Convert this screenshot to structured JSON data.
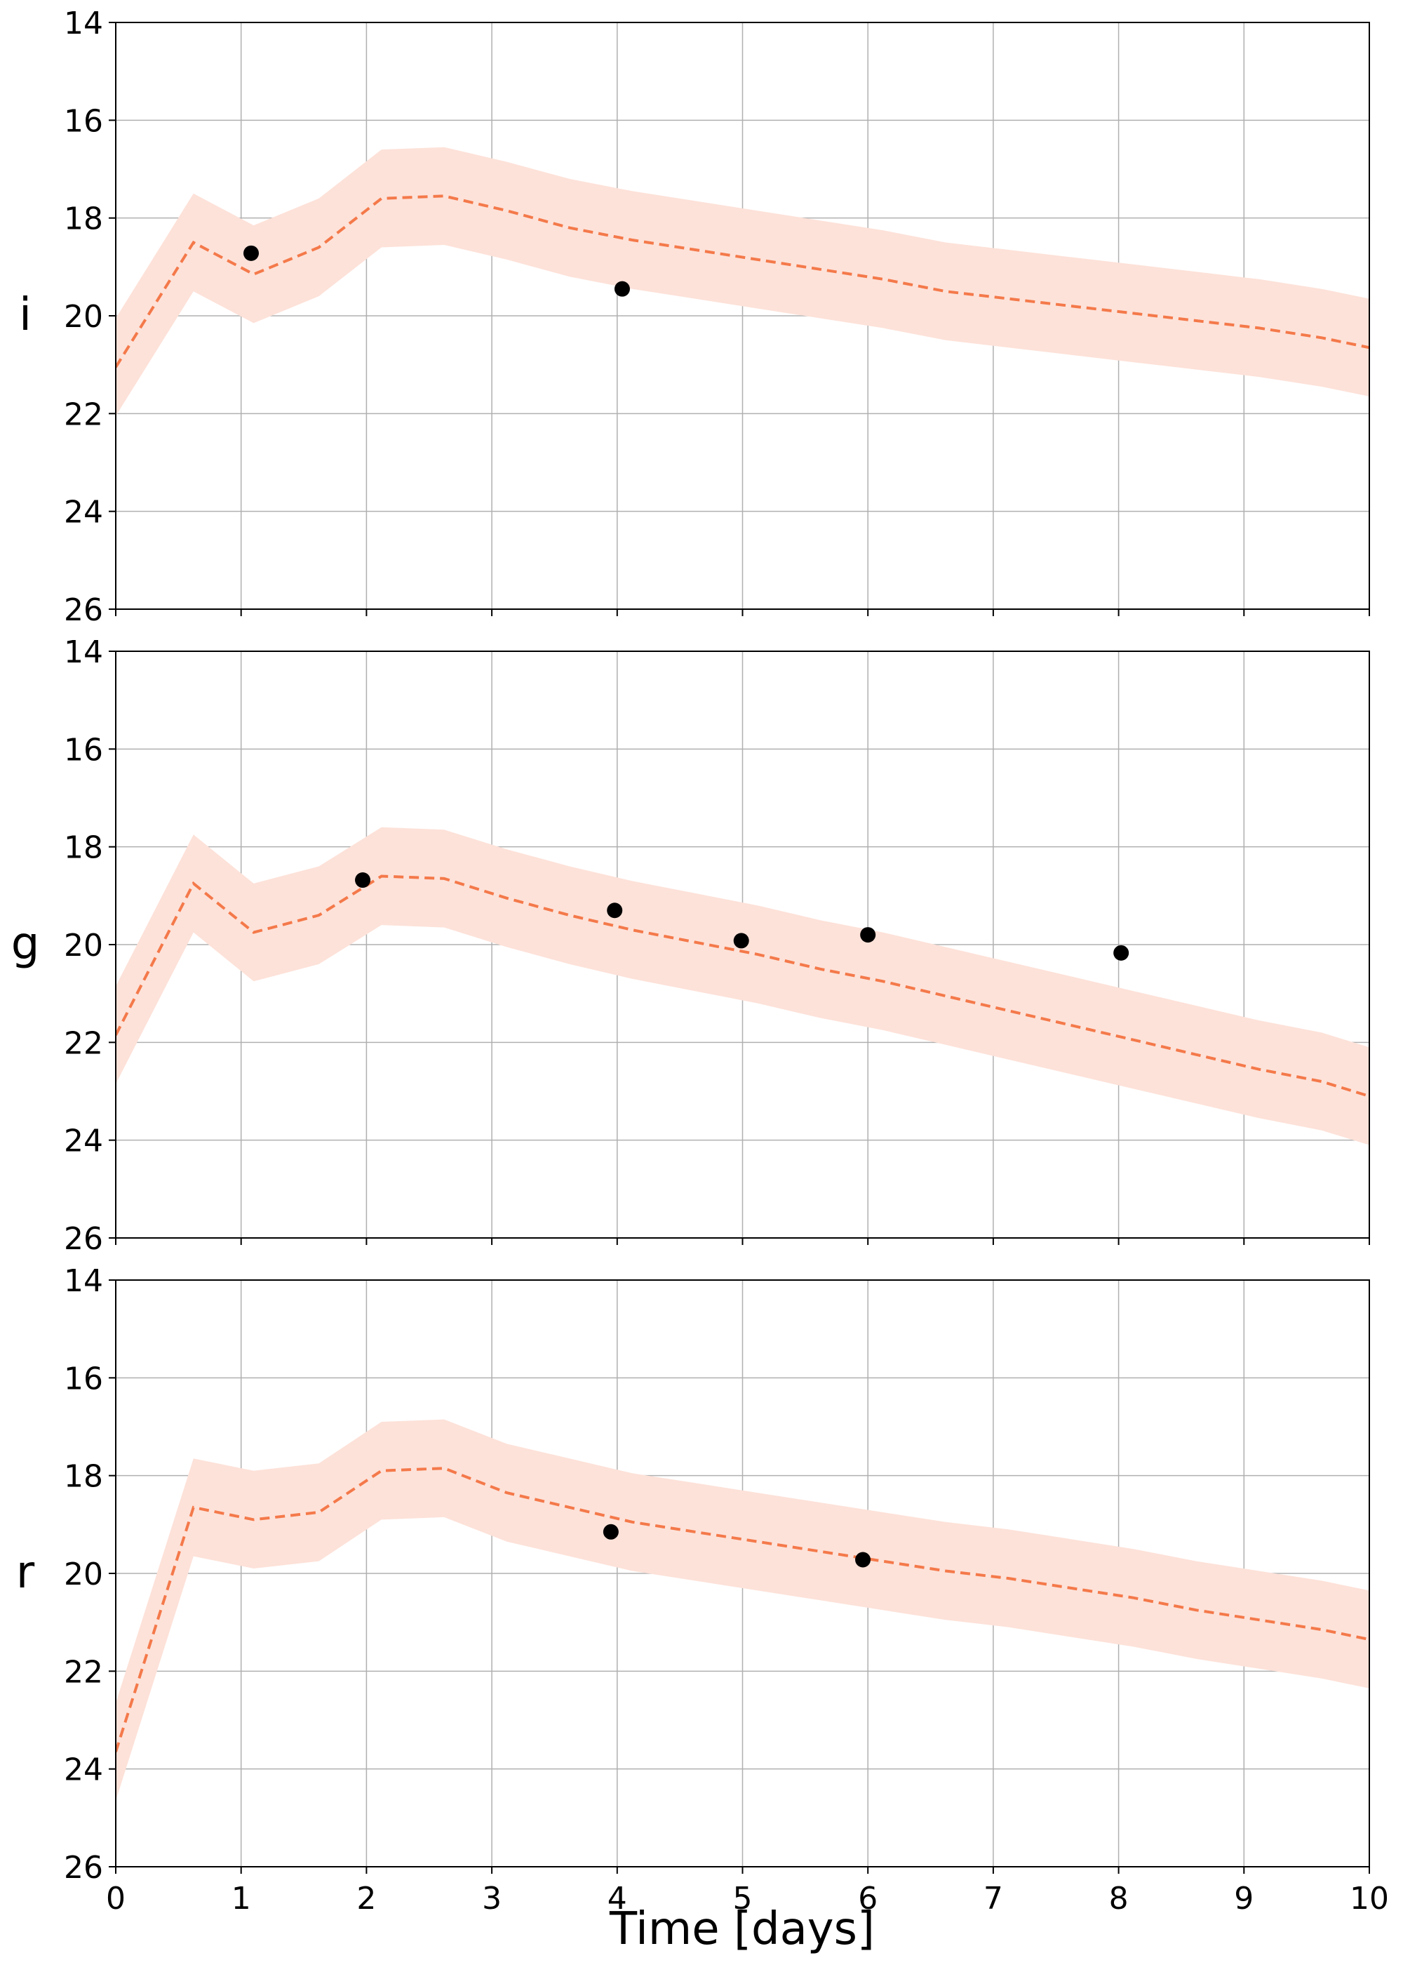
{
  "xlabel": "Time [days]",
  "colors": {
    "model": "#f4794a",
    "band": "#fde2d9",
    "points": "#000000",
    "grid": "#b0b0b0"
  },
  "chart_data": [
    {
      "type": "line",
      "ylabel": "i",
      "xlim": [
        0,
        10
      ],
      "ylim": [
        26,
        14
      ],
      "y_inverted": true,
      "grid": true,
      "xticks": [
        "0",
        "1",
        "2",
        "3",
        "4",
        "5",
        "6",
        "7",
        "8",
        "9",
        "10"
      ],
      "yticks": [
        "14",
        "16",
        "18",
        "20",
        "22",
        "24",
        "26"
      ],
      "model": {
        "x": [
          0,
          0.62,
          1.1,
          1.62,
          2.12,
          2.62,
          3.12,
          3.62,
          4.12,
          4.62,
          5.12,
          5.62,
          6.12,
          6.62,
          7.12,
          7.62,
          8.12,
          8.62,
          9.12,
          9.62,
          10
        ],
        "y": [
          21.05,
          18.5,
          19.15,
          18.6,
          17.6,
          17.55,
          17.85,
          18.2,
          18.45,
          18.65,
          18.85,
          19.05,
          19.25,
          19.5,
          19.65,
          19.8,
          19.95,
          20.1,
          20.25,
          20.45,
          20.65
        ]
      },
      "band_halfwidth": 1.0,
      "observations": {
        "x": [
          1.08,
          4.04
        ],
        "y": [
          18.72,
          19.45
        ]
      }
    },
    {
      "type": "line",
      "ylabel": "g",
      "xlim": [
        0,
        10
      ],
      "ylim": [
        26,
        14
      ],
      "y_inverted": true,
      "grid": true,
      "xticks": [
        "0",
        "1",
        "2",
        "3",
        "4",
        "5",
        "6",
        "7",
        "8",
        "9",
        "10"
      ],
      "yticks": [
        "14",
        "16",
        "18",
        "20",
        "22",
        "24",
        "26"
      ],
      "model": {
        "x": [
          0,
          0.62,
          1.1,
          1.62,
          2.12,
          2.62,
          3.12,
          3.62,
          4.12,
          4.62,
          5.12,
          5.62,
          6.12,
          6.62,
          7.12,
          7.62,
          8.12,
          8.62,
          9.12,
          9.62,
          10
        ],
        "y": [
          21.85,
          18.75,
          19.75,
          19.4,
          18.6,
          18.65,
          19.05,
          19.4,
          19.7,
          19.95,
          20.2,
          20.5,
          20.75,
          21.05,
          21.35,
          21.65,
          21.95,
          22.25,
          22.55,
          22.8,
          23.1
        ]
      },
      "band_halfwidth": 1.0,
      "observations": {
        "x": [
          1.97,
          3.98,
          4.99,
          6.0,
          8.02
        ],
        "y": [
          18.68,
          19.3,
          19.92,
          19.8,
          20.17
        ]
      }
    },
    {
      "type": "line",
      "ylabel": "r",
      "xlim": [
        0,
        10
      ],
      "ylim": [
        26,
        14
      ],
      "y_inverted": true,
      "grid": true,
      "xticks": [
        "0",
        "1",
        "2",
        "3",
        "4",
        "5",
        "6",
        "7",
        "8",
        "9",
        "10"
      ],
      "yticks": [
        "14",
        "16",
        "18",
        "20",
        "22",
        "24",
        "26"
      ],
      "model": {
        "x": [
          0,
          0.62,
          1.1,
          1.62,
          2.12,
          2.62,
          3.12,
          3.62,
          4.12,
          4.62,
          5.12,
          5.62,
          6.12,
          6.62,
          7.12,
          7.62,
          8.12,
          8.62,
          9.12,
          9.62,
          10
        ],
        "y": [
          23.65,
          18.65,
          18.9,
          18.75,
          17.9,
          17.85,
          18.35,
          18.65,
          18.95,
          19.15,
          19.35,
          19.55,
          19.75,
          19.95,
          20.1,
          20.3,
          20.5,
          20.75,
          20.95,
          21.15,
          21.35
        ]
      },
      "band_halfwidth": 1.0,
      "observations": {
        "x": [
          3.95,
          5.96
        ],
        "y": [
          19.15,
          19.72
        ]
      }
    }
  ]
}
